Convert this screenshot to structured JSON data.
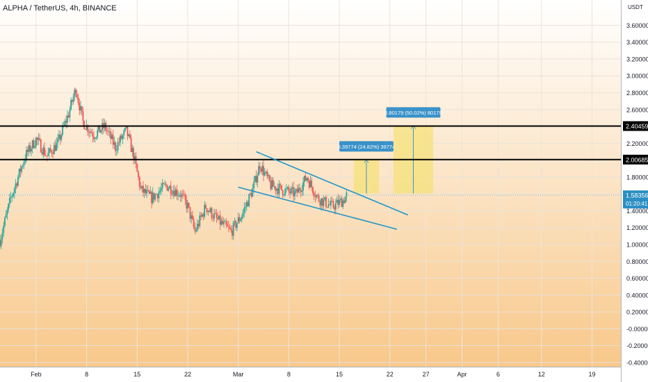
{
  "header": {
    "symbol_title": "ALPHA / TetherUS, 4h, BINANCE"
  },
  "colors": {
    "up": "#26a69a",
    "down": "#ef5350",
    "trendline": "#2196c8",
    "level_line": "#000000",
    "target_box": "#f5e27a",
    "label_bg": "#3a92c9",
    "price_tag_bg": "#2b8fc3",
    "bg_top": "#ffffff",
    "bg_bottom": "#f8c88a"
  },
  "chart_data": {
    "type": "candlestick",
    "title": "ALPHA / TetherUS, 4h, BINANCE",
    "currency_label": "USDT",
    "ylim": [
      -0.45,
      3.9
    ],
    "y_ticks": [
      "3.60000",
      "3.40000",
      "3.20000",
      "3.00000",
      "2.80000",
      "2.60000",
      "2.40000",
      "2.20000",
      "2.00000",
      "1.80000",
      "1.60000",
      "1.40000",
      "1.20000",
      "1.00000",
      "0.80000",
      "0.60000",
      "0.40000",
      "0.20000",
      "-0.00000",
      "-0.20000",
      "-0.40000"
    ],
    "y_tick_values": [
      3.6,
      3.4,
      3.2,
      3.0,
      2.8,
      2.6,
      2.4,
      2.2,
      2.0,
      1.8,
      1.6,
      1.4,
      1.2,
      1.0,
      0.8,
      0.6,
      0.4,
      0.2,
      0.0,
      -0.2,
      -0.4
    ],
    "x_ticks": [
      {
        "label": "Feb",
        "day": 0
      },
      {
        "label": "8",
        "day": 7
      },
      {
        "label": "15",
        "day": 14
      },
      {
        "label": "22",
        "day": 21
      },
      {
        "label": "Mar",
        "day": 28
      },
      {
        "label": "8",
        "day": 35
      },
      {
        "label": "15",
        "day": 42
      },
      {
        "label": "22",
        "day": 49
      },
      {
        "label": "27",
        "day": 54
      },
      {
        "label": "Apr",
        "day": 59
      },
      {
        "label": "6",
        "day": 64
      },
      {
        "label": "12",
        "day": 70
      },
      {
        "label": "19",
        "day": 77
      }
    ],
    "x_range_days": [
      -5,
      81
    ],
    "ohlc_anchors": [
      {
        "day": -5,
        "close": 1.05
      },
      {
        "day": -3.5,
        "close": 1.55
      },
      {
        "day": -2.5,
        "close": 1.8
      },
      {
        "day": -1.5,
        "close": 2.05
      },
      {
        "day": 0,
        "close": 2.25
      },
      {
        "day": 1.5,
        "close": 2.05
      },
      {
        "day": 3,
        "close": 2.2
      },
      {
        "day": 4.5,
        "close": 2.55
      },
      {
        "day": 5.5,
        "close": 2.85
      },
      {
        "day": 6.5,
        "close": 2.45
      },
      {
        "day": 8,
        "close": 2.3
      },
      {
        "day": 9.5,
        "close": 2.4
      },
      {
        "day": 11,
        "close": 2.15
      },
      {
        "day": 12.5,
        "close": 2.35
      },
      {
        "day": 13.5,
        "close": 2.05
      },
      {
        "day": 14.5,
        "close": 1.65
      },
      {
        "day": 16,
        "close": 1.55
      },
      {
        "day": 18,
        "close": 1.7
      },
      {
        "day": 20,
        "close": 1.6
      },
      {
        "day": 21,
        "close": 1.45
      },
      {
        "day": 22,
        "close": 1.15
      },
      {
        "day": 23.5,
        "close": 1.45
      },
      {
        "day": 25,
        "close": 1.3
      },
      {
        "day": 27,
        "close": 1.15
      },
      {
        "day": 28.5,
        "close": 1.35
      },
      {
        "day": 30,
        "close": 1.65
      },
      {
        "day": 31,
        "close": 1.95
      },
      {
        "day": 32.5,
        "close": 1.7
      },
      {
        "day": 34,
        "close": 1.65
      },
      {
        "day": 36,
        "close": 1.6
      },
      {
        "day": 37.5,
        "close": 1.8
      },
      {
        "day": 39,
        "close": 1.55
      },
      {
        "day": 41,
        "close": 1.45
      },
      {
        "day": 42.5,
        "close": 1.52
      },
      {
        "day": 43,
        "close": 1.58
      }
    ],
    "horizontal_levels": [
      {
        "value": 2.40459,
        "label": "2.40459"
      },
      {
        "value": 2.00685,
        "label": "2.00685"
      }
    ],
    "current_price": {
      "value": 1.58356,
      "label": "1.58356",
      "countdown": "01:20:41"
    },
    "trendlines": [
      {
        "name": "upper",
        "from": {
          "day": 30.5,
          "value": 2.1
        },
        "to": {
          "day": 51.5,
          "value": 1.35
        }
      },
      {
        "name": "lower",
        "from": {
          "day": 28,
          "value": 1.68
        },
        "to": {
          "day": 50,
          "value": 1.18
        }
      }
    ],
    "targets": [
      {
        "name": "target-1",
        "day_start": 44,
        "day_end": 47.5,
        "from": 1.605,
        "to": 2.003,
        "label": "0.39774 (24.82%) 39774"
      },
      {
        "name": "target-2",
        "day_start": 49.5,
        "day_end": 55,
        "from": 1.605,
        "to": 2.406,
        "label": "0.80179 (50.02%) 80179"
      }
    ]
  }
}
